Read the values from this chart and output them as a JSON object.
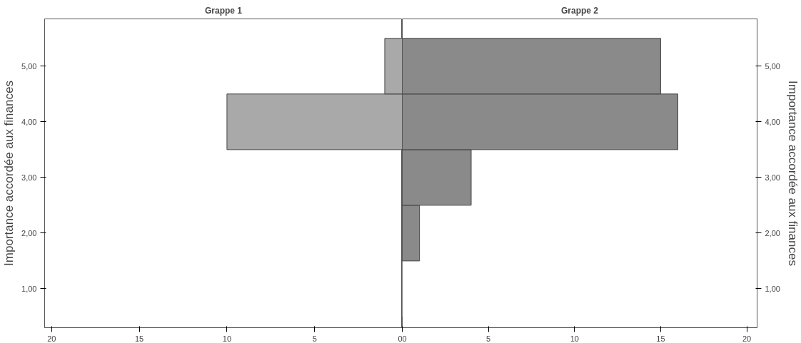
{
  "chart_data": [
    {
      "type": "histogram",
      "orientation": "horizontal",
      "title": "Grappe 1",
      "ylabel": "Importance accordée aux finances",
      "bins": [
        0.5,
        1.5,
        2.5,
        3.5,
        4.5,
        5.5
      ],
      "values": [
        0,
        0,
        0,
        10,
        1
      ],
      "color": "#a9a9a9",
      "xlim": [
        20.4,
        0
      ],
      "xticks": [
        20,
        15,
        10,
        5,
        0
      ],
      "ylim": [
        0.3,
        5.85
      ],
      "yticks": [
        {
          "value": 1,
          "label": "1,00"
        },
        {
          "value": 2,
          "label": "2,00"
        },
        {
          "value": 3,
          "label": "3,00"
        },
        {
          "value": 4,
          "label": "4,00"
        },
        {
          "value": 5,
          "label": "5,00"
        }
      ],
      "grid": false
    },
    {
      "type": "histogram",
      "orientation": "horizontal",
      "title": "Grappe 2",
      "ylabel": "Importance accordée aux finances",
      "bins": [
        0.5,
        1.5,
        2.5,
        3.5,
        4.5,
        5.5
      ],
      "values": [
        0,
        1,
        4,
        16,
        15
      ],
      "color": "#8a8a8a",
      "xlim": [
        0,
        20.6
      ],
      "xticks": [
        0,
        5,
        10,
        15,
        20
      ],
      "ylim": [
        0.3,
        5.85
      ],
      "yticks": [
        {
          "value": 1,
          "label": "1,00"
        },
        {
          "value": 2,
          "label": "2,00"
        },
        {
          "value": 3,
          "label": "3,00"
        },
        {
          "value": 4,
          "label": "4,00"
        },
        {
          "value": 5,
          "label": "5,00"
        }
      ],
      "grid": false
    }
  ]
}
